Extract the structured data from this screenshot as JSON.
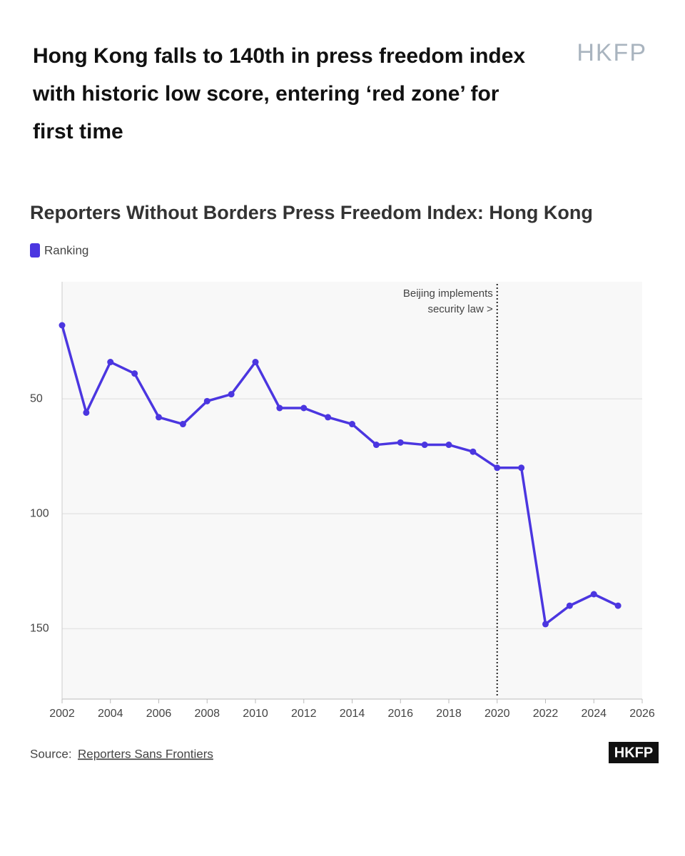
{
  "header": {
    "headline": "Hong Kong falls to 140th in press freedom index with historic low score, entering ‘red zone’ for first time",
    "logo": "HKFP"
  },
  "chart_data": {
    "type": "line",
    "title": "Reporters Without Borders Press Freedom Index: Hong Kong",
    "x": [
      2002,
      2003,
      2004,
      2005,
      2006,
      2007,
      2008,
      2009,
      2010,
      2011,
      2012,
      2013,
      2014,
      2015,
      2016,
      2017,
      2018,
      2019,
      2020,
      2021,
      2022,
      2023,
      2024,
      2025
    ],
    "series": [
      {
        "name": "Ranking",
        "color": "#4b36e0",
        "values": [
          18,
          56,
          34,
          39,
          58,
          61,
          51,
          48,
          34,
          54,
          54,
          58,
          61,
          70,
          69,
          70,
          70,
          73,
          80,
          80,
          148,
          140,
          135,
          140
        ]
      }
    ],
    "xlim": [
      2002,
      2026
    ],
    "xticks": [
      2002,
      2004,
      2006,
      2008,
      2010,
      2012,
      2014,
      2016,
      2018,
      2020,
      2022,
      2024,
      2026
    ],
    "ylim": [
      0,
      180
    ],
    "yticks": [
      50,
      100,
      150
    ],
    "y_reversed": true,
    "grid": true,
    "annotation": {
      "x": 2020,
      "lines": [
        "Beijing implements",
        "security law >"
      ]
    }
  },
  "footer": {
    "source_label": "Source:",
    "source_link": "Reporters Sans Frontiers",
    "badge": "HKFP"
  }
}
